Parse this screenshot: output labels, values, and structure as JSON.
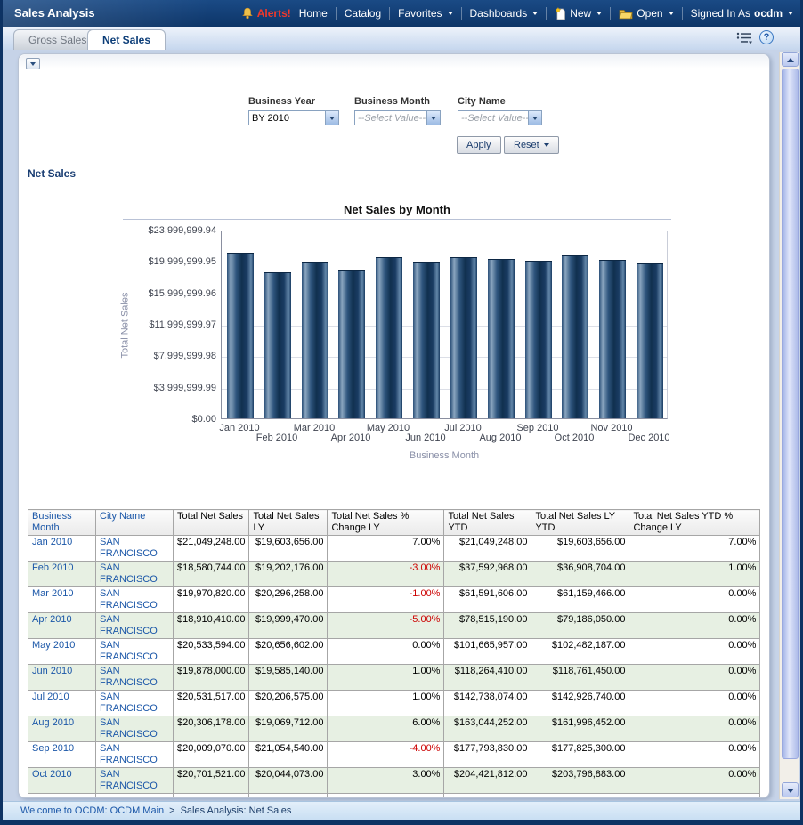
{
  "header": {
    "app_title": "Sales Analysis",
    "nav": {
      "alerts": "Alerts!",
      "home": "Home",
      "catalog": "Catalog",
      "favorites": "Favorites",
      "dashboards": "Dashboards",
      "new_item": "New",
      "open_item": "Open",
      "signed_in_as": "Signed In As",
      "user": "ocdm"
    }
  },
  "tabs": [
    {
      "label": "Gross Sales",
      "active": false
    },
    {
      "label": "Net Sales",
      "active": true
    }
  ],
  "filters": {
    "business_year": {
      "label": "Business Year",
      "value": "BY 2010"
    },
    "business_month": {
      "label": "Business Month",
      "value": "--Select Value--"
    },
    "city_name": {
      "label": "City Name",
      "value": "--Select Value--"
    },
    "apply_label": "Apply",
    "reset_label": "Reset"
  },
  "section_title": "Net Sales",
  "chart_data": {
    "type": "bar",
    "title": "Net Sales by Month",
    "xlabel": "Business Month",
    "ylabel": "Total Net Sales",
    "categories": [
      "Jan 2010",
      "Feb 2010",
      "Mar 2010",
      "Apr 2010",
      "May 2010",
      "Jun 2010",
      "Jul 2010",
      "Aug 2010",
      "Sep 2010",
      "Oct 2010",
      "Nov 2010",
      "Dec 2010"
    ],
    "values": [
      21049248,
      18580744,
      19970820,
      18910410,
      20533594,
      19878000,
      20531517,
      20306178,
      20009070,
      20701521,
      20100000,
      19700000
    ],
    "y_tick_labels": [
      "$23,999,999.94",
      "$19,999,999.95",
      "$15,999,999.96",
      "$11,999,999.97",
      "$7,999,999.98",
      "$3,999,999.99",
      "$0.00"
    ],
    "ylim": [
      0,
      23999999.94
    ],
    "grid": true,
    "legend": "none",
    "bar_color": "#1a3f69"
  },
  "table": {
    "columns": [
      "Business Month",
      "City Name",
      "Total Net Sales",
      "Total Net Sales LY",
      "Total Net Sales % Change LY",
      "Total Net Sales YTD",
      "Total Net Sales LY YTD",
      "Total Net Sales YTD % Change LY"
    ],
    "rows": [
      [
        "Jan 2010",
        "SAN FRANCISCO",
        "$21,049,248.00",
        "$19,603,656.00",
        "7.00%",
        "$21,049,248.00",
        "$19,603,656.00",
        "7.00%"
      ],
      [
        "Feb 2010",
        "SAN FRANCISCO",
        "$18,580,744.00",
        "$19,202,176.00",
        "-3.00%",
        "$37,592,968.00",
        "$36,908,704.00",
        "1.00%"
      ],
      [
        "Mar 2010",
        "SAN FRANCISCO",
        "$19,970,820.00",
        "$20,296,258.00",
        "-1.00%",
        "$61,591,606.00",
        "$61,159,466.00",
        "0.00%"
      ],
      [
        "Apr 2010",
        "SAN FRANCISCO",
        "$18,910,410.00",
        "$19,999,470.00",
        "-5.00%",
        "$78,515,190.00",
        "$79,186,050.00",
        "0.00%"
      ],
      [
        "May 2010",
        "SAN FRANCISCO",
        "$20,533,594.00",
        "$20,656,602.00",
        "0.00%",
        "$101,665,957.00",
        "$102,482,187.00",
        "0.00%"
      ],
      [
        "Jun 2010",
        "SAN FRANCISCO",
        "$19,878,000.00",
        "$19,585,140.00",
        "1.00%",
        "$118,264,410.00",
        "$118,761,450.00",
        "0.00%"
      ],
      [
        "Jul 2010",
        "SAN FRANCISCO",
        "$20,531,517.00",
        "$20,206,575.00",
        "1.00%",
        "$142,738,074.00",
        "$142,926,740.00",
        "0.00%"
      ],
      [
        "Aug 2010",
        "SAN FRANCISCO",
        "$20,306,178.00",
        "$19,069,712.00",
        "6.00%",
        "$163,044,252.00",
        "$161,996,452.00",
        "0.00%"
      ],
      [
        "Sep 2010",
        "SAN FRANCISCO",
        "$20,009,070.00",
        "$21,054,540.00",
        "-4.00%",
        "$177,793,830.00",
        "$177,825,300.00",
        "0.00%"
      ],
      [
        "Oct 2010",
        "SAN FRANCISCO",
        "$20,701,521.00",
        "$20,044,073.00",
        "3.00%",
        "$204,421,812.00",
        "$203,796,883.00",
        "0.00%"
      ]
    ]
  },
  "statusbar": {
    "link": "Welcome to OCDM: OCDM Main",
    "separator": ">",
    "current": "Sales Analysis: Net Sales"
  },
  "colors": {
    "header_navy": "#0d3568",
    "accent_blue": "#1b57a8",
    "negative_red": "#cc0000",
    "row_band_green": "#e7f0e3",
    "bar_navy": "#1a3f69",
    "main_bg": "#c6d3e8"
  }
}
